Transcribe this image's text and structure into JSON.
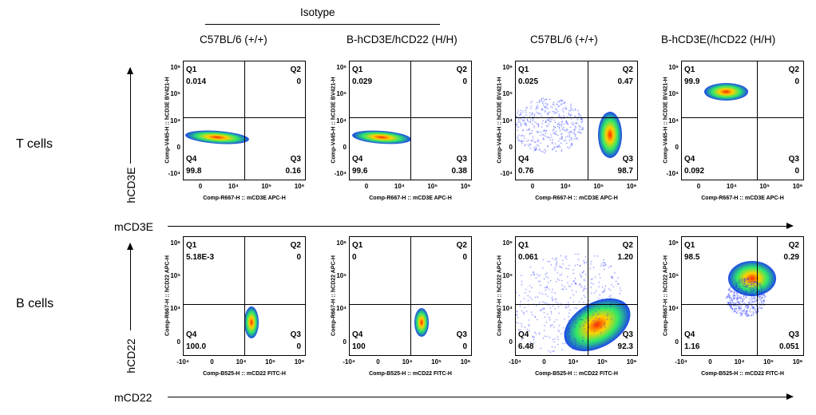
{
  "header": {
    "isotype_label": "Isotype",
    "columns": [
      "C57BL/6 (+/+)",
      "B-hCD3E/hCD22 (H/H)",
      "C57BL/6 (+/+)",
      "B-hCD3E(/hCD22 (H/H)"
    ]
  },
  "rows": [
    {
      "label": "T cells",
      "y_axis_label": "hCD3E",
      "x_axis_label": "mCD3E",
      "plot_ylabel": "Comp-V445-H :: hCD3E BV421-H",
      "plot_xlabel": "Comp-R667-H :: mCD3E APC-H",
      "yticks": [
        "10⁶",
        "10⁵",
        "10⁴",
        "0",
        "-10⁴"
      ],
      "xticks": [
        "0",
        "10⁴",
        "10⁵",
        "10⁶"
      ],
      "panels": [
        {
          "q1": "0.014",
          "q2": "0",
          "q3": "0.16",
          "q4": "99.8"
        },
        {
          "q1": "0.029",
          "q2": "0",
          "q3": "0.38",
          "q4": "99.6"
        },
        {
          "q1": "0.025",
          "q2": "0.47",
          "q3": "98.7",
          "q4": "0.76"
        },
        {
          "q1": "99.9",
          "q2": "0",
          "q3": "0",
          "q4": "0.092"
        }
      ]
    },
    {
      "label": "B cells",
      "y_axis_label": "hCD22",
      "x_axis_label": "mCD22",
      "plot_ylabel": "Comp-R667-H :: hCD22 APC-H",
      "plot_xlabel": "Comp-B525-H :: mCD22 FITC-H",
      "yticks": [
        "10⁶",
        "10⁵",
        "10⁴",
        "0"
      ],
      "xticks": [
        "-10⁴",
        "0",
        "10⁴",
        "10⁵",
        "10⁶"
      ],
      "panels": [
        {
          "q1": "5.18E-3",
          "q2": "0",
          "q3": "0",
          "q4": "100.0"
        },
        {
          "q1": "0",
          "q2": "0",
          "q3": "0",
          "q4": "100"
        },
        {
          "q1": "0.061",
          "q2": "1.20",
          "q3": "92.3",
          "q4": "6.48"
        },
        {
          "q1": "98.5",
          "q2": "0.29",
          "q3": "0.051",
          "q4": "1.16"
        }
      ]
    }
  ],
  "quadrant_names": {
    "q1": "Q1",
    "q2": "Q2",
    "q3": "Q3",
    "q4": "Q4"
  },
  "colors": {
    "density_low": "#1a2bff",
    "density_mid": "#2ee86a",
    "density_high": "#ffd200",
    "density_peak": "#ff2a00"
  }
}
